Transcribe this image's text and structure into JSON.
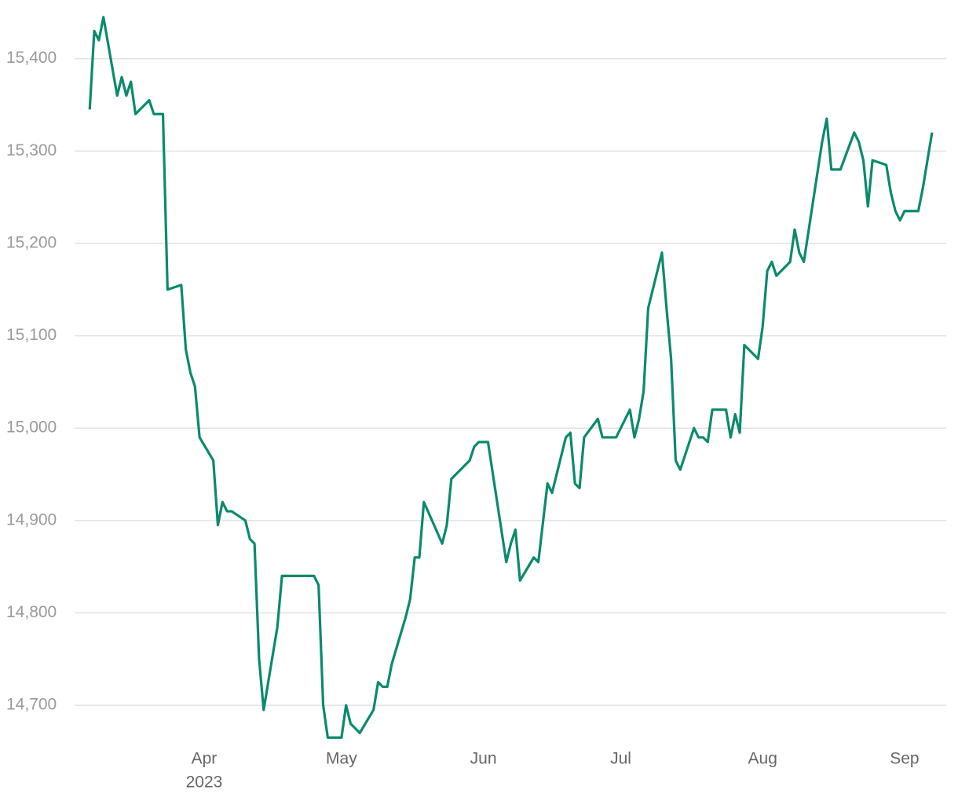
{
  "chart_data": {
    "type": "line",
    "x": [
      -25,
      -24,
      -23,
      -22,
      -19,
      -18,
      -17,
      -16,
      -15,
      -12,
      -11,
      -9,
      -8,
      -5,
      -4,
      -3,
      -2,
      -1,
      2,
      3,
      4,
      5,
      6,
      9,
      10,
      11,
      12,
      13,
      16,
      17,
      24,
      25,
      26,
      27,
      30,
      31,
      32,
      34,
      37,
      38,
      39,
      40,
      41,
      44,
      45,
      46,
      47,
      48,
      52,
      53,
      54,
      58,
      59,
      60,
      62,
      66,
      67,
      68,
      69,
      72,
      73,
      75,
      76,
      79,
      80,
      81,
      82,
      83,
      86,
      87,
      90,
      93,
      94,
      95,
      96,
      97,
      100,
      101,
      102,
      103,
      104,
      107,
      108,
      109,
      110,
      111,
      114,
      115,
      116,
      117,
      118,
      121,
      122,
      123,
      124,
      125,
      128,
      129,
      130,
      131,
      135,
      136,
      137,
      139,
      142,
      143,
      144,
      145,
      146,
      149,
      150,
      151,
      152,
      153,
      156,
      157,
      159
    ],
    "series": [
      {
        "color": "#0b8a6d",
        "values": [
          15345,
          15430,
          15420,
          15445,
          15360,
          15380,
          15360,
          15375,
          15340,
          15355,
          15340,
          15340,
          15150,
          15155,
          15085,
          15060,
          15045,
          14990,
          14965,
          14895,
          14920,
          14910,
          14910,
          14900,
          14880,
          14875,
          14750,
          14695,
          14785,
          14840,
          14840,
          14830,
          14700,
          14665,
          14665,
          14700,
          14680,
          14670,
          14695,
          14725,
          14720,
          14720,
          14745,
          14795,
          14815,
          14860,
          14860,
          14920,
          14875,
          14895,
          14945,
          14965,
          14980,
          14985,
          14985,
          14855,
          14875,
          14890,
          14835,
          14860,
          14855,
          14940,
          14930,
          14990,
          14995,
          14940,
          14935,
          14990,
          15010,
          14990,
          14990,
          15020,
          14990,
          15010,
          15040,
          15130,
          15190,
          15130,
          15075,
          14965,
          14955,
          15000,
          14990,
          14990,
          14985,
          15020,
          15020,
          14990,
          15015,
          14995,
          15090,
          15075,
          15110,
          15170,
          15180,
          15165,
          15180,
          15215,
          15190,
          15180,
          15310,
          15335,
          15280,
          15280,
          15320,
          15310,
          15290,
          15240,
          15290,
          15285,
          15255,
          15235,
          15225,
          15235,
          15235,
          15260,
          15320
        ]
      }
    ],
    "xlim": [
      -28.3,
      162.1
    ],
    "xticks": [
      {
        "value": 0,
        "label": "Apr"
      },
      {
        "value": 30,
        "label": "May"
      },
      {
        "value": 61,
        "label": "Jun"
      },
      {
        "value": 91,
        "label": "Jul"
      },
      {
        "value": 122,
        "label": "Aug"
      },
      {
        "value": 153,
        "label": "Sep"
      }
    ],
    "x_year_label": "2023",
    "ylim": [
      14655,
      15455
    ],
    "yticks": [
      {
        "value": 14700,
        "label": "14,700"
      },
      {
        "value": 14800,
        "label": "14,800"
      },
      {
        "value": 14900,
        "label": "14,900"
      },
      {
        "value": 15000,
        "label": "15,000"
      },
      {
        "value": 15100,
        "label": "15,100"
      },
      {
        "value": 15200,
        "label": "15,200"
      },
      {
        "value": 15300,
        "label": "15,300"
      },
      {
        "value": 15400,
        "label": "15,400"
      }
    ],
    "grid": true
  }
}
